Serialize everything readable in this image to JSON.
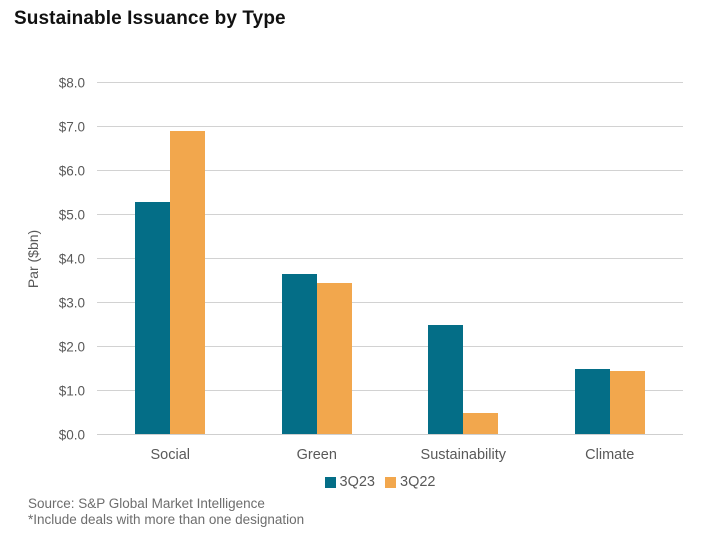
{
  "title": "Sustainable Issuance by Type",
  "chart_data": {
    "type": "bar",
    "categories": [
      "Social",
      "Green",
      "Sustainability",
      "Climate"
    ],
    "series": [
      {
        "name": "3Q23",
        "color": "#046e87",
        "values": [
          5.3,
          3.65,
          2.5,
          1.5
        ]
      },
      {
        "name": "3Q22",
        "color": "#f2a74d",
        "values": [
          6.9,
          3.45,
          0.5,
          1.45
        ]
      }
    ],
    "title": "Sustainable Issuance by Type",
    "xlabel": "",
    "ylabel": "Par ($bn)",
    "ylim": [
      0,
      8
    ],
    "ytick_step": 1,
    "ytick_prefix": "$",
    "ytick_decimals": 1,
    "grid": true,
    "legend_position": "bottom"
  },
  "footer": {
    "source": "Source: S&P Global Market Intelligence",
    "note": "*Include deals with more than one designation"
  },
  "colors": {
    "series_3q23": "#046e87",
    "series_3q22": "#f2a74d",
    "gridline": "#d2d2d2",
    "axis_text": "#595959",
    "footer_text": "#6d6d6d",
    "title_text": "#111111"
  }
}
